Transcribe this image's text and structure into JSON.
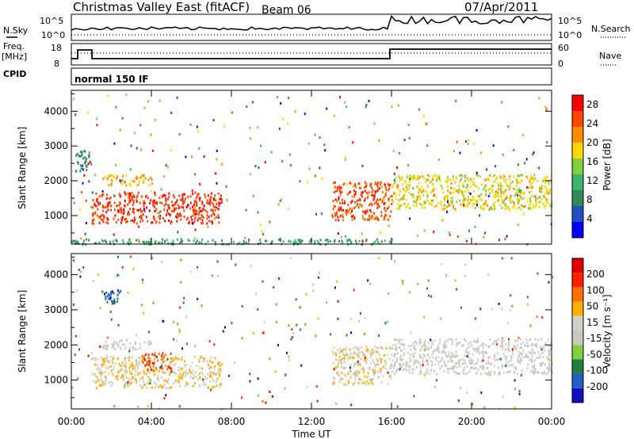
{
  "header": {
    "title": "Christmas Valley East (fitACF)",
    "beam": "Beam 06",
    "date": "07/Apr/2011"
  },
  "strips": {
    "nsky_label": "N.Sky",
    "nsearch_label": "N.Search",
    "freq_label_1": "Freq.",
    "freq_label_2": "[MHz]",
    "nave_label": "Nave",
    "cpid_label": "CPID",
    "cpid_value": "normal 150 IF",
    "noise_ticks": [
      "10^5",
      "10^0"
    ],
    "freq_ticks": [
      "18",
      "8"
    ],
    "nave_ticks": [
      "60",
      "0"
    ]
  },
  "colors": {
    "power_scale": [
      "#0000ff",
      "#2050c0",
      "#2e8b57",
      "#3cb371",
      "#7fd040",
      "#ffd700",
      "#ff8c00",
      "#ff4500",
      "#ff0000"
    ],
    "velocity_scale": [
      "#1010c0",
      "#2060c8",
      "#1f7f3f",
      "#7fd040",
      "#c8c8c0",
      "#d0d0c8",
      "#ffb000",
      "#ff7000",
      "#ff2000",
      "#e00000"
    ],
    "ground_scatter": "#b4b4b4"
  },
  "chart_data": [
    {
      "type": "heatmap",
      "title": "",
      "xlabel": "",
      "ylabel": "Slant Range [km]",
      "xlim": [
        "00:00",
        "24:00"
      ],
      "ylim": [
        180,
        4600
      ],
      "x_ticks": [
        "00:00",
        "04:00",
        "08:00",
        "12:00",
        "16:00",
        "20:00",
        "00:00"
      ],
      "y_ticks": [
        1000,
        2000,
        3000,
        4000
      ],
      "colorbar": {
        "label": "Power [dB]",
        "ticks": [
          4,
          8,
          12,
          16,
          20,
          24,
          28
        ],
        "range": [
          0,
          30
        ]
      },
      "regions": [
        {
          "t_start": 1.0,
          "t_end": 7.5,
          "r_start": 800,
          "r_end": 1700,
          "value": 26
        },
        {
          "t_start": 1.5,
          "t_end": 4.0,
          "r_start": 1900,
          "r_end": 2200,
          "value": 20
        },
        {
          "t_start": 0.2,
          "t_end": 1.0,
          "r_start": 2300,
          "r_end": 2900,
          "value": 8
        },
        {
          "t_start": 13.0,
          "t_end": 16.0,
          "r_start": 900,
          "r_end": 2000,
          "value": 25
        },
        {
          "t_start": 16.0,
          "t_end": 24.0,
          "r_start": 1200,
          "r_end": 2200,
          "value": 18
        },
        {
          "t_start": 0.0,
          "t_end": 16.0,
          "r_start": 200,
          "r_end": 350,
          "value": 10
        }
      ]
    },
    {
      "type": "heatmap",
      "title": "",
      "xlabel": "Time UT",
      "ylabel": "Slant Range [km]",
      "xlim": [
        "00:00",
        "24:00"
      ],
      "ylim": [
        180,
        4600
      ],
      "x_ticks": [
        "00:00",
        "04:00",
        "08:00",
        "12:00",
        "16:00",
        "20:00",
        "00:00"
      ],
      "y_ticks": [
        1000,
        2000,
        3000,
        4000
      ],
      "colorbar": {
        "label": "Velocity [m s⁻¹]",
        "ticks": [
          200,
          100,
          50,
          15,
          -15,
          -50,
          -100,
          -200
        ],
        "range": [
          -250,
          250
        ]
      },
      "regions": [
        {
          "t_start": 1.0,
          "t_end": 7.5,
          "r_start": 800,
          "r_end": 1700,
          "value": 40
        },
        {
          "t_start": 1.5,
          "t_end": 4.0,
          "r_start": 1900,
          "r_end": 2200,
          "value": 0
        },
        {
          "t_start": 3.5,
          "t_end": 5.0,
          "r_start": 1300,
          "r_end": 1800,
          "value": 150
        },
        {
          "t_start": 13.0,
          "t_end": 16.0,
          "r_start": 900,
          "r_end": 2000,
          "value": 35
        },
        {
          "t_start": 16.0,
          "t_end": 24.0,
          "r_start": 1200,
          "r_end": 2200,
          "value": 0
        },
        {
          "t_start": 1.5,
          "t_end": 2.5,
          "r_start": 3200,
          "r_end": 3600,
          "value": -180
        }
      ]
    }
  ]
}
